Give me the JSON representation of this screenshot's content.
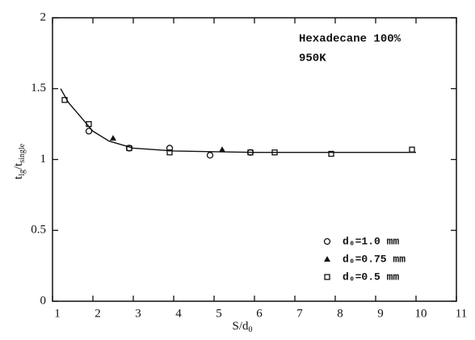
{
  "chart_data": {
    "type": "scatter",
    "annotations": [
      "Hexadecane 100%",
      "950K"
    ],
    "xlabel": [
      {
        "text": "S/d"
      },
      {
        "text": "0",
        "sub": true
      }
    ],
    "ylabel": [
      {
        "text": "t"
      },
      {
        "text": "lg",
        "sub": true
      },
      {
        "text": "/t"
      },
      {
        "text": "single",
        "sub": true
      }
    ],
    "xlim": [
      1,
      11
    ],
    "xticks": [
      1,
      2,
      3,
      4,
      5,
      6,
      7,
      8,
      9,
      10,
      11
    ],
    "ylim": [
      0,
      2
    ],
    "yticks": [
      0,
      0.5,
      1,
      1.5,
      2
    ],
    "series": [
      {
        "name": "d₀=1.0 mm",
        "marker": "circle",
        "color": "#111111",
        "x": [
          1.9,
          2.9,
          3.9,
          4.9,
          5.9
        ],
        "values": [
          1.2,
          1.08,
          1.08,
          1.03,
          1.05
        ]
      },
      {
        "name": "d₀=0.75 mm",
        "marker": "triangle",
        "color": "#111111",
        "x": [
          2.5,
          5.2
        ],
        "values": [
          1.15,
          1.07
        ]
      },
      {
        "name": "d₀=0.5 mm",
        "marker": "square",
        "color": "#111111",
        "x": [
          1.3,
          1.9,
          2.9,
          3.9,
          5.9,
          6.5,
          7.9,
          9.9
        ],
        "values": [
          1.42,
          1.25,
          1.08,
          1.05,
          1.05,
          1.05,
          1.04,
          1.07
        ]
      }
    ],
    "curve": {
      "color": "#111111",
      "x": [
        1.2,
        1.4,
        1.7,
        2.0,
        2.4,
        3.0,
        4.0,
        6.0,
        10.0
      ],
      "values": [
        1.5,
        1.4,
        1.3,
        1.2,
        1.13,
        1.08,
        1.06,
        1.05,
        1.05
      ]
    }
  }
}
